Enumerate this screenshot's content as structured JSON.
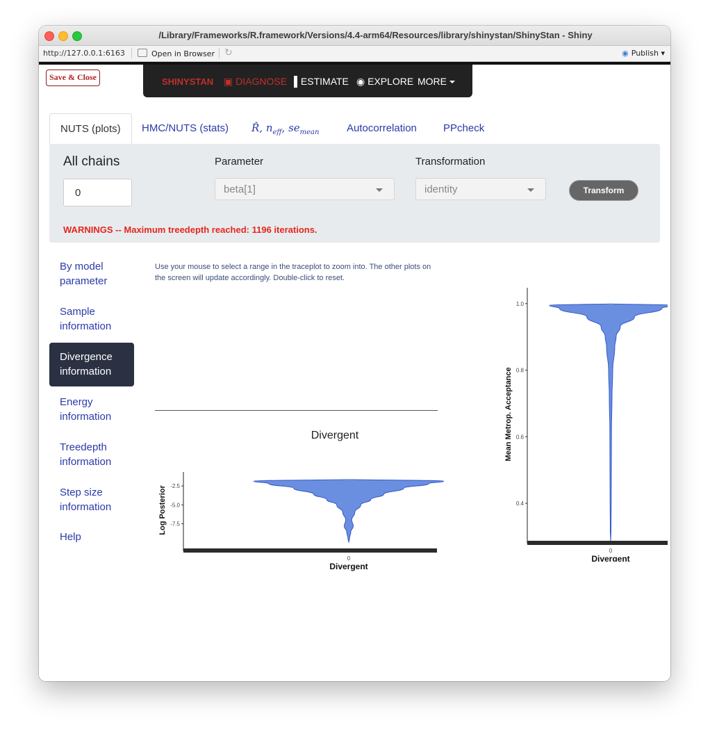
{
  "window": {
    "title": "/Library/Frameworks/R.framework/Versions/4.4-arm64/Resources/library/shinystan/ShinyStan - Shiny"
  },
  "toolbar": {
    "url": "http://127.0.0.1:6163",
    "open_in_browser": "Open in Browser",
    "publish": "Publish"
  },
  "app": {
    "save_close": "Save & Close",
    "nav": {
      "brand": "SHINYSTAN",
      "diagnose": "DIAGNOSE",
      "estimate": "ESTIMATE",
      "explore": "EXPLORE",
      "more": "MORE"
    },
    "tabs": [
      {
        "label": "NUTS (plots)",
        "active": true
      },
      {
        "label": "HMC/NUTS (stats)"
      },
      {
        "label_r": "R",
        "label_n": "n",
        "label_n_sub": "eff",
        "label_se": "se",
        "label_se_sub": "mean"
      },
      {
        "label": "Autocorrelation"
      },
      {
        "label": "PPcheck"
      }
    ],
    "controls": {
      "chains_label": "All chains",
      "chains_value": "0",
      "parameter_label": "Parameter",
      "parameter_value": "beta[1]",
      "transformation_label": "Transformation",
      "transformation_value": "identity",
      "transform_button": "Transform",
      "warning": "WARNINGS -- Maximum treedepth reached: 1196 iterations."
    },
    "sidebar": [
      {
        "line1": "By model",
        "line2": "parameter"
      },
      {
        "line1": "Sample",
        "line2": "information"
      },
      {
        "line1": "Divergence",
        "line2": "information",
        "active": true
      },
      {
        "line1": "Energy",
        "line2": "information"
      },
      {
        "line1": "Treedepth",
        "line2": "information"
      },
      {
        "line1": "Step size",
        "line2": "information"
      },
      {
        "line1": "Help"
      }
    ],
    "help_text": "Use your mouse to select a range in the traceplot to zoom into. The other plots on the screen will update accordingly. Double-click to reset."
  },
  "colors": {
    "violin_fill": "#6a8fe0",
    "violin_stroke": "#3357c9",
    "warning": "#e5261c",
    "brand": "#c0302b"
  },
  "chart_data": [
    {
      "type": "violin",
      "title": "Divergent",
      "xlabel": "Divergent",
      "ylabel": "Log Posterior",
      "categories": [
        "0"
      ],
      "yticks": [
        -2.5,
        -5.0,
        -7.5
      ],
      "ylim": [
        -10.2,
        -1.2
      ],
      "profile": [
        {
          "y": -1.6,
          "width": 0.0
        },
        {
          "y": -1.85,
          "width": 0.95
        },
        {
          "y": -2.2,
          "width": 0.8
        },
        {
          "y": -2.8,
          "width": 0.55
        },
        {
          "y": -3.6,
          "width": 0.35
        },
        {
          "y": -4.3,
          "width": 0.22
        },
        {
          "y": -5.0,
          "width": 0.12
        },
        {
          "y": -6.0,
          "width": 0.06
        },
        {
          "y": -7.0,
          "width": 0.03
        },
        {
          "y": -7.8,
          "width": 0.045
        },
        {
          "y": -8.6,
          "width": 0.02
        },
        {
          "y": -9.4,
          "width": 0.008
        },
        {
          "y": -10.0,
          "width": 0.0
        }
      ]
    },
    {
      "type": "violin",
      "title": "",
      "xlabel": "Divergent",
      "ylabel": "Mean Metrop. Acceptance",
      "categories": [
        "0"
      ],
      "yticks": [
        1.0,
        0.8,
        0.6,
        0.4
      ],
      "ylim": [
        0.3,
        1.035
      ],
      "profile": [
        {
          "y": 1.0,
          "width": 0.0
        },
        {
          "y": 0.995,
          "width": 0.9
        },
        {
          "y": 0.985,
          "width": 0.75
        },
        {
          "y": 0.96,
          "width": 0.35
        },
        {
          "y": 0.93,
          "width": 0.14
        },
        {
          "y": 0.9,
          "width": 0.08
        },
        {
          "y": 0.87,
          "width": 0.06
        },
        {
          "y": 0.8,
          "width": 0.03
        },
        {
          "y": 0.72,
          "width": 0.02
        },
        {
          "y": 0.62,
          "width": 0.012
        },
        {
          "y": 0.5,
          "width": 0.01
        },
        {
          "y": 0.4,
          "width": 0.008
        },
        {
          "y": 0.32,
          "width": 0.005
        },
        {
          "y": 0.28,
          "width": 0.0
        }
      ]
    }
  ]
}
